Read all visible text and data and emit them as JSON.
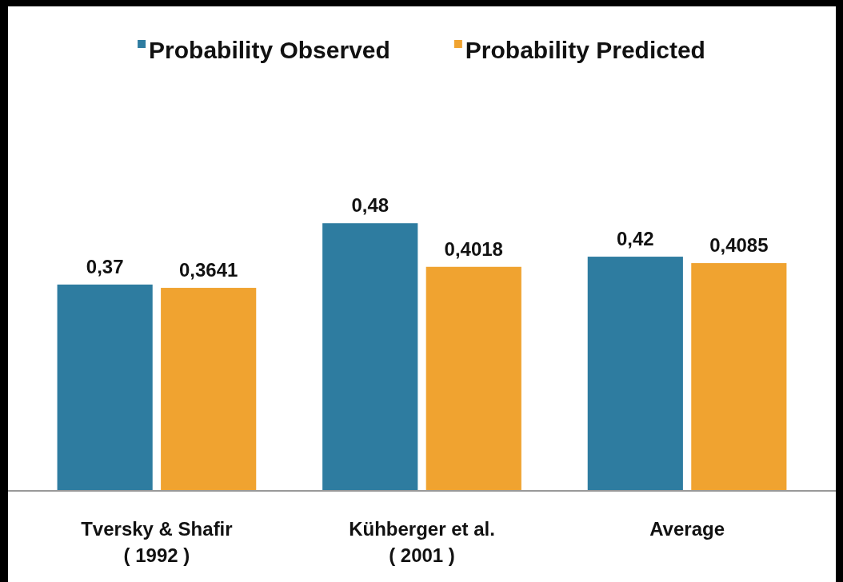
{
  "chart_data": {
    "type": "bar",
    "categories": [
      "Tversky & Shafir\n( 1992 )",
      "Kühberger et al.\n( 2001 )",
      "Average"
    ],
    "series": [
      {
        "name": "Probability Observed",
        "color": "#2e7ca0",
        "values": [
          0.37,
          0.48,
          0.42
        ],
        "value_labels": [
          "0,37",
          "0,48",
          "0,42"
        ]
      },
      {
        "name": "Probability Predicted",
        "color": "#f0a330",
        "values": [
          0.3641,
          0.4018,
          0.4085
        ],
        "value_labels": [
          "0,3641",
          "0,4018",
          "0,4085"
        ]
      }
    ],
    "legend": "top"
  }
}
